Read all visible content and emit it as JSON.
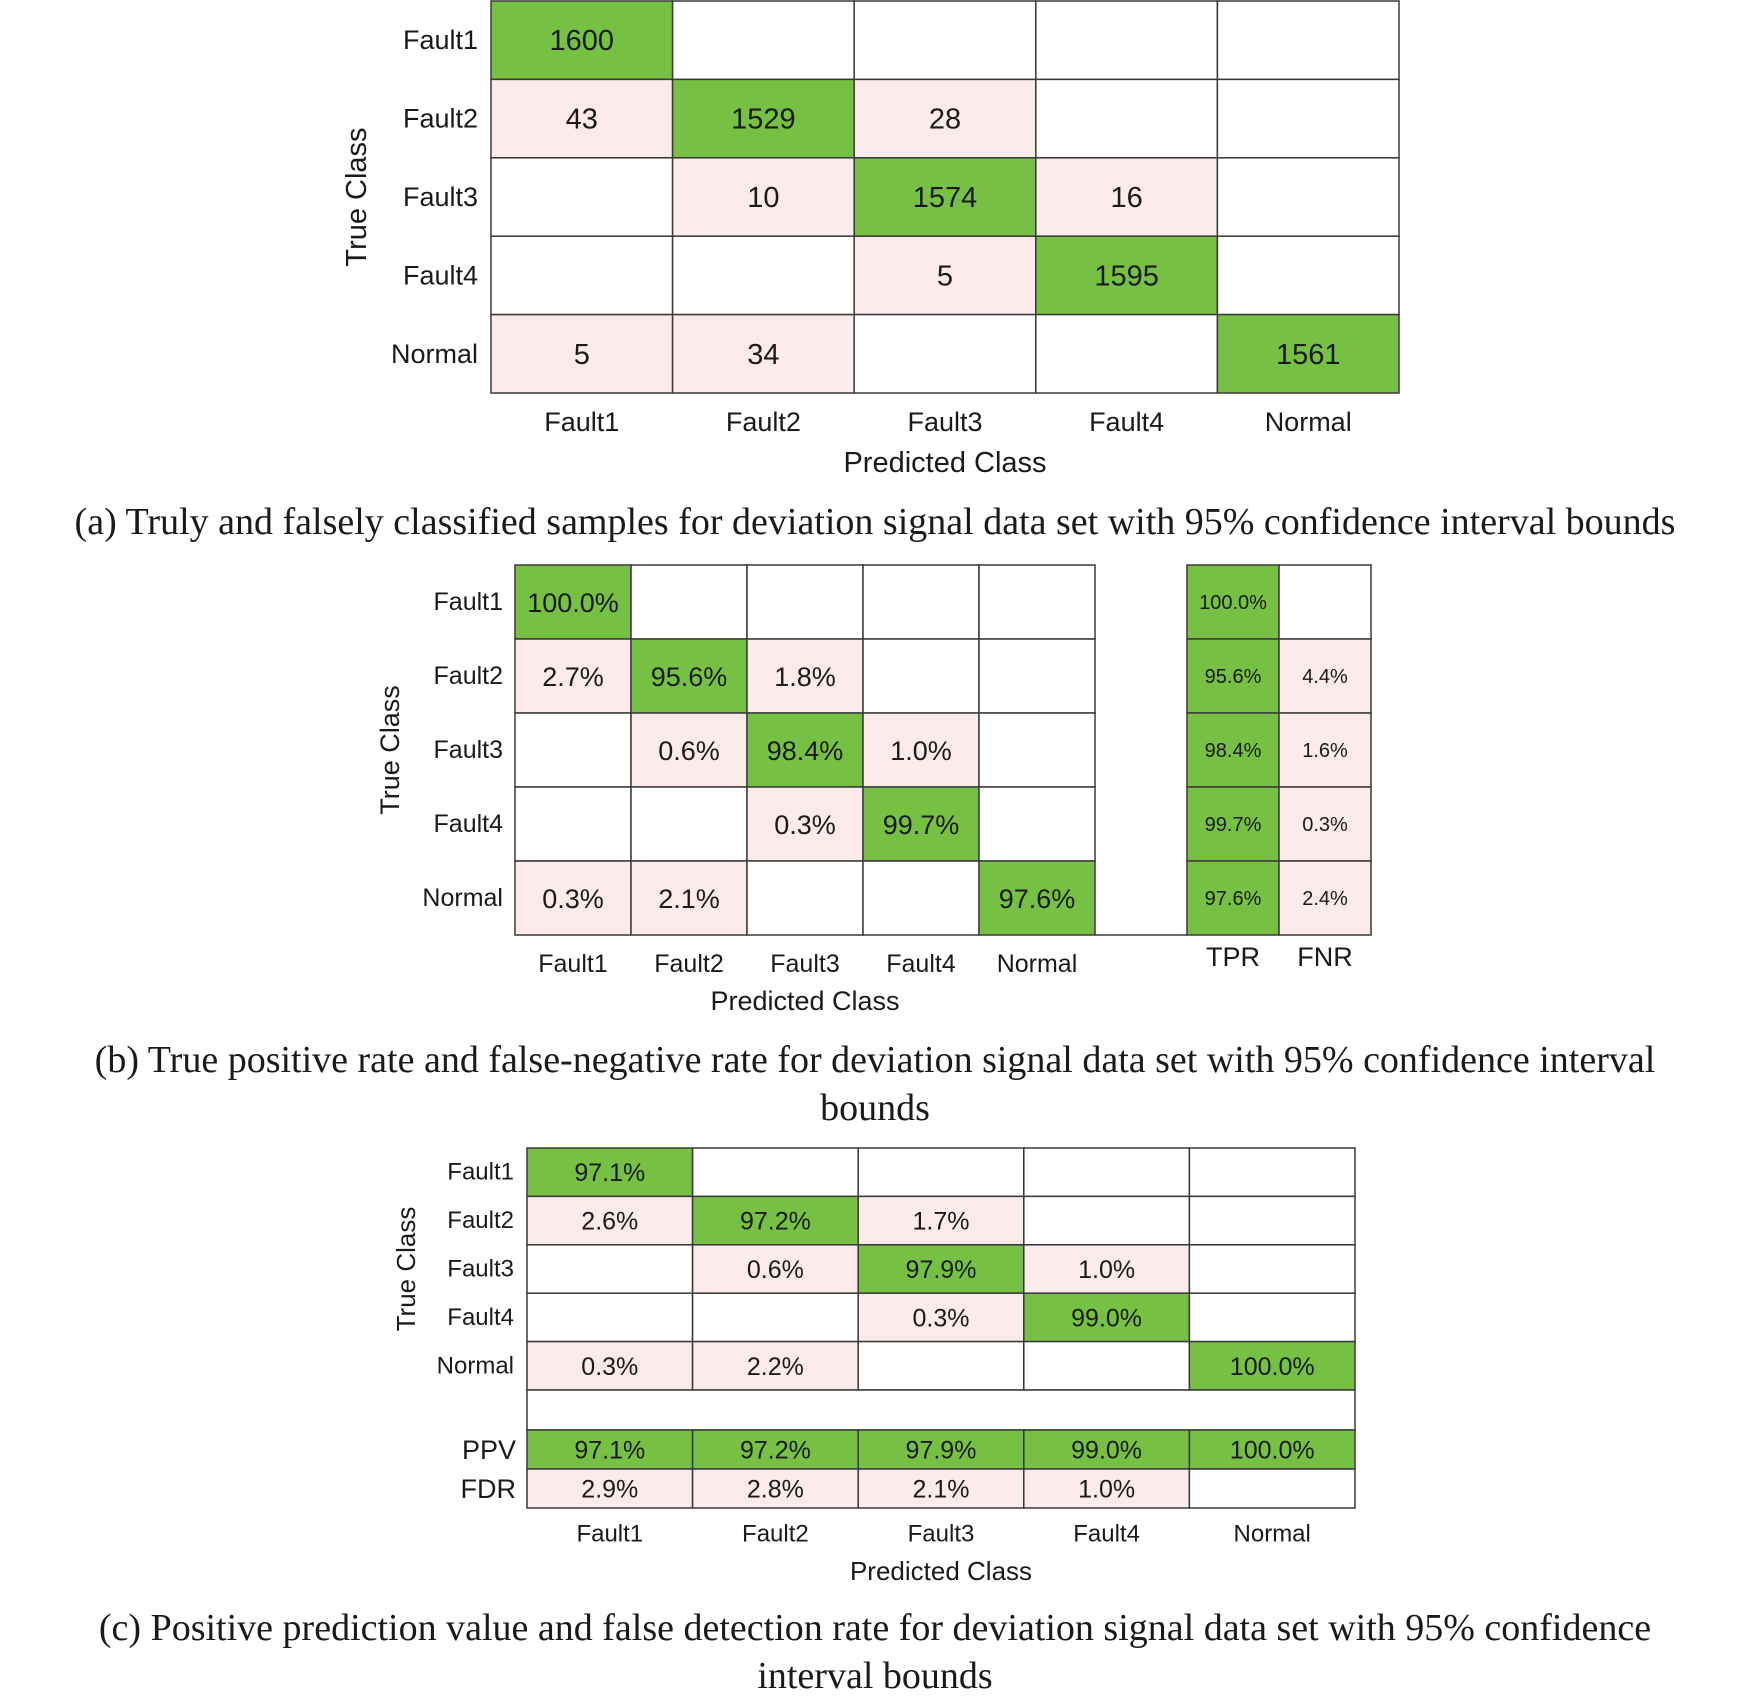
{
  "colors": {
    "diag": "#76c043",
    "off": "#fdeaea",
    "empty": "#ffffff",
    "grid": "#3a3a3a"
  },
  "chart_data": [
    {
      "type": "heatmap",
      "id": "a",
      "caption": "(a) Truly and falsely classified samples for deviation signal data set with 95% confidence interval bounds",
      "xlabel": "Predicted Class",
      "ylabel": "True Class",
      "row_labels": [
        "Fault1",
        "Fault2",
        "Fault3",
        "Fault4",
        "Normal"
      ],
      "col_labels": [
        "Fault1",
        "Fault2",
        "Fault3",
        "Fault4",
        "Normal"
      ],
      "cells": [
        [
          "1600",
          "",
          "",
          "",
          ""
        ],
        [
          "43",
          "1529",
          "28",
          "",
          ""
        ],
        [
          "",
          "10",
          "1574",
          "16",
          ""
        ],
        [
          "",
          "",
          "5",
          "1595",
          ""
        ],
        [
          "5",
          "34",
          "",
          "",
          "1561"
        ]
      ]
    },
    {
      "type": "heatmap",
      "id": "b",
      "caption_lines": [
        "(b) True positive rate and false-negative rate for deviation signal data set with 95% confidence interval",
        "bounds"
      ],
      "xlabel": "Predicted Class",
      "ylabel": "True Class",
      "row_labels": [
        "Fault1",
        "Fault2",
        "Fault3",
        "Fault4",
        "Normal"
      ],
      "col_labels": [
        "Fault1",
        "Fault2",
        "Fault3",
        "Fault4",
        "Normal"
      ],
      "cells": [
        [
          "100.0%",
          "",
          "",
          "",
          ""
        ],
        [
          "2.7%",
          "95.6%",
          "1.8%",
          "",
          ""
        ],
        [
          "",
          "0.6%",
          "98.4%",
          "1.0%",
          ""
        ],
        [
          "",
          "",
          "0.3%",
          "99.7%",
          ""
        ],
        [
          "0.3%",
          "2.1%",
          "",
          "",
          "97.6%"
        ]
      ],
      "side_labels": [
        "TPR",
        "FNR"
      ],
      "side_cells": [
        [
          "100.0%",
          ""
        ],
        [
          "95.6%",
          "4.4%"
        ],
        [
          "98.4%",
          "1.6%"
        ],
        [
          "99.7%",
          "0.3%"
        ],
        [
          "97.6%",
          "2.4%"
        ]
      ]
    },
    {
      "type": "heatmap",
      "id": "c",
      "caption_lines": [
        "(c) Positive prediction value and false detection rate for deviation signal data set with 95% confidence",
        "interval bounds"
      ],
      "xlabel": "Predicted Class",
      "ylabel": "True Class",
      "row_labels": [
        "Fault1",
        "Fault2",
        "Fault3",
        "Fault4",
        "Normal"
      ],
      "col_labels": [
        "Fault1",
        "Fault2",
        "Fault3",
        "Fault4",
        "Normal"
      ],
      "cells": [
        [
          "97.1%",
          "",
          "",
          "",
          ""
        ],
        [
          "2.6%",
          "97.2%",
          "1.7%",
          "",
          ""
        ],
        [
          "",
          "0.6%",
          "97.9%",
          "1.0%",
          ""
        ],
        [
          "",
          "",
          "0.3%",
          "99.0%",
          ""
        ],
        [
          "0.3%",
          "2.2%",
          "",
          "",
          "100.0%"
        ]
      ],
      "bottom_labels": [
        "PPV",
        "FDR"
      ],
      "bottom_cells": [
        [
          "97.1%",
          "97.2%",
          "97.9%",
          "99.0%",
          "100.0%"
        ],
        [
          "2.9%",
          "2.8%",
          "2.1%",
          "1.0%",
          ""
        ]
      ]
    }
  ]
}
